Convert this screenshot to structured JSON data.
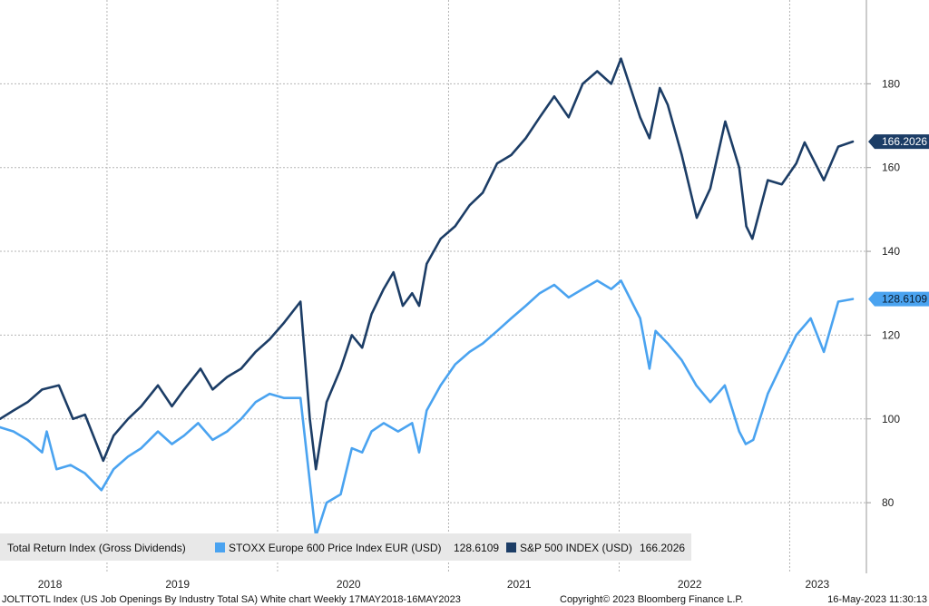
{
  "chart_data": {
    "type": "line",
    "title": "",
    "xlabel": "",
    "ylabel": "",
    "ylim": [
      64,
      200
    ],
    "y_ticks": [
      80,
      100,
      120,
      140,
      160,
      180
    ],
    "y_tick_labels": [
      "80",
      "100",
      "120",
      "140",
      "160",
      "180"
    ],
    "x_range": [
      "2018-05-17",
      "2023-05-16"
    ],
    "x_tick_labels": [
      {
        "label": "2018",
        "date": "2018-09-01"
      },
      {
        "label": "2019",
        "date": "2019-06-01"
      },
      {
        "label": "2020",
        "date": "2020-06-01"
      },
      {
        "label": "2021",
        "date": "2021-06-01"
      },
      {
        "label": "2022",
        "date": "2022-06-01"
      },
      {
        "label": "2023",
        "date": "2023-03-01"
      }
    ],
    "year_boundaries": [
      "2019-01-01",
      "2020-01-01",
      "2021-01-01",
      "2022-01-01",
      "2023-01-01"
    ],
    "grid": true,
    "legend": {
      "placement": "bottom-left",
      "header": "Total Return Index (Gross Dividends)",
      "entries": [
        {
          "name": "STOXX Europe 600 Price Index EUR (USD)",
          "last": "128.6109",
          "color": "#4aa3f0"
        },
        {
          "name": "S&P 500 INDEX (USD)",
          "last": "166.2026",
          "color": "#1c3d66"
        }
      ]
    },
    "series": [
      {
        "name": "STOXX Europe 600 Price Index EUR (USD)",
        "color": "#4aa3f0",
        "last_value_label": "128.6109",
        "points": [
          [
            "2018-05-17",
            98
          ],
          [
            "2018-06-15",
            97
          ],
          [
            "2018-07-15",
            95
          ],
          [
            "2018-08-15",
            92
          ],
          [
            "2018-08-25",
            97
          ],
          [
            "2018-09-15",
            88
          ],
          [
            "2018-10-15",
            89
          ],
          [
            "2018-11-15",
            87
          ],
          [
            "2018-12-20",
            83
          ],
          [
            "2019-01-15",
            88
          ],
          [
            "2019-02-15",
            91
          ],
          [
            "2019-03-15",
            93
          ],
          [
            "2019-04-20",
            97
          ],
          [
            "2019-05-20",
            94
          ],
          [
            "2019-06-15",
            96
          ],
          [
            "2019-07-15",
            99
          ],
          [
            "2019-08-15",
            95
          ],
          [
            "2019-09-15",
            97
          ],
          [
            "2019-10-15",
            100
          ],
          [
            "2019-11-15",
            104
          ],
          [
            "2019-12-15",
            106
          ],
          [
            "2020-01-15",
            105
          ],
          [
            "2020-02-19",
            105
          ],
          [
            "2020-03-10",
            85
          ],
          [
            "2020-03-23",
            72
          ],
          [
            "2020-04-15",
            80
          ],
          [
            "2020-05-15",
            82
          ],
          [
            "2020-06-08",
            93
          ],
          [
            "2020-06-30",
            92
          ],
          [
            "2020-07-20",
            97
          ],
          [
            "2020-08-15",
            99
          ],
          [
            "2020-09-15",
            97
          ],
          [
            "2020-10-15",
            99
          ],
          [
            "2020-10-30",
            92
          ],
          [
            "2020-11-15",
            102
          ],
          [
            "2020-12-15",
            108
          ],
          [
            "2021-01-15",
            113
          ],
          [
            "2021-02-15",
            116
          ],
          [
            "2021-03-15",
            118
          ],
          [
            "2021-04-15",
            121
          ],
          [
            "2021-05-15",
            124
          ],
          [
            "2021-06-15",
            127
          ],
          [
            "2021-07-15",
            130
          ],
          [
            "2021-08-15",
            132
          ],
          [
            "2021-09-15",
            129
          ],
          [
            "2021-10-15",
            131
          ],
          [
            "2021-11-15",
            133
          ],
          [
            "2021-12-15",
            131
          ],
          [
            "2022-01-05",
            133
          ],
          [
            "2022-02-15",
            124
          ],
          [
            "2022-03-07",
            112
          ],
          [
            "2022-03-20",
            121
          ],
          [
            "2022-04-15",
            118
          ],
          [
            "2022-05-15",
            114
          ],
          [
            "2022-06-15",
            108
          ],
          [
            "2022-07-15",
            104
          ],
          [
            "2022-08-15",
            108
          ],
          [
            "2022-09-15",
            97
          ],
          [
            "2022-09-29",
            94
          ],
          [
            "2022-10-15",
            95
          ],
          [
            "2022-11-15",
            106
          ],
          [
            "2022-12-15",
            113
          ],
          [
            "2023-01-15",
            120
          ],
          [
            "2023-02-15",
            124
          ],
          [
            "2023-03-15",
            116
          ],
          [
            "2023-04-15",
            128
          ],
          [
            "2023-05-16",
            128.6109
          ]
        ]
      },
      {
        "name": "S&P 500 INDEX (USD)",
        "color": "#1c3d66",
        "last_value_label": "166.2026",
        "points": [
          [
            "2018-05-17",
            100
          ],
          [
            "2018-06-15",
            102
          ],
          [
            "2018-07-15",
            104
          ],
          [
            "2018-08-15",
            107
          ],
          [
            "2018-09-20",
            108
          ],
          [
            "2018-10-20",
            100
          ],
          [
            "2018-11-15",
            101
          ],
          [
            "2018-12-24",
            90
          ],
          [
            "2019-01-15",
            96
          ],
          [
            "2019-02-15",
            100
          ],
          [
            "2019-03-15",
            103
          ],
          [
            "2019-04-20",
            108
          ],
          [
            "2019-05-20",
            103
          ],
          [
            "2019-06-15",
            107
          ],
          [
            "2019-07-20",
            112
          ],
          [
            "2019-08-15",
            107
          ],
          [
            "2019-09-15",
            110
          ],
          [
            "2019-10-15",
            112
          ],
          [
            "2019-11-15",
            116
          ],
          [
            "2019-12-15",
            119
          ],
          [
            "2020-01-15",
            123
          ],
          [
            "2020-02-19",
            128
          ],
          [
            "2020-03-10",
            100
          ],
          [
            "2020-03-23",
            88
          ],
          [
            "2020-04-15",
            104
          ],
          [
            "2020-05-15",
            112
          ],
          [
            "2020-06-08",
            120
          ],
          [
            "2020-06-30",
            117
          ],
          [
            "2020-07-20",
            125
          ],
          [
            "2020-08-15",
            131
          ],
          [
            "2020-09-05",
            135
          ],
          [
            "2020-09-25",
            127
          ],
          [
            "2020-10-15",
            130
          ],
          [
            "2020-10-30",
            127
          ],
          [
            "2020-11-15",
            137
          ],
          [
            "2020-12-15",
            143
          ],
          [
            "2021-01-15",
            146
          ],
          [
            "2021-02-15",
            151
          ],
          [
            "2021-03-15",
            154
          ],
          [
            "2021-04-15",
            161
          ],
          [
            "2021-05-15",
            163
          ],
          [
            "2021-06-15",
            167
          ],
          [
            "2021-07-15",
            172
          ],
          [
            "2021-08-15",
            177
          ],
          [
            "2021-09-15",
            172
          ],
          [
            "2021-10-15",
            180
          ],
          [
            "2021-11-15",
            183
          ],
          [
            "2021-12-15",
            180
          ],
          [
            "2022-01-05",
            186
          ],
          [
            "2022-02-15",
            172
          ],
          [
            "2022-03-07",
            167
          ],
          [
            "2022-03-29",
            179
          ],
          [
            "2022-04-15",
            175
          ],
          [
            "2022-05-15",
            163
          ],
          [
            "2022-06-16",
            148
          ],
          [
            "2022-07-15",
            155
          ],
          [
            "2022-08-16",
            171
          ],
          [
            "2022-09-15",
            160
          ],
          [
            "2022-09-30",
            146
          ],
          [
            "2022-10-13",
            143
          ],
          [
            "2022-11-15",
            157
          ],
          [
            "2022-12-15",
            156
          ],
          [
            "2023-01-15",
            161
          ],
          [
            "2023-02-02",
            166
          ],
          [
            "2023-03-15",
            157
          ],
          [
            "2023-04-15",
            165
          ],
          [
            "2023-05-16",
            166.2026
          ]
        ]
      }
    ]
  },
  "footer": {
    "left": "JOLTTOTL Index (US Job Openings By Industry Total SA) White chart  Weekly 17MAY2018-16MAY2023",
    "center": "Copyright© 2023 Bloomberg Finance L.P.",
    "right": "16-May-2023 11:30:13"
  }
}
